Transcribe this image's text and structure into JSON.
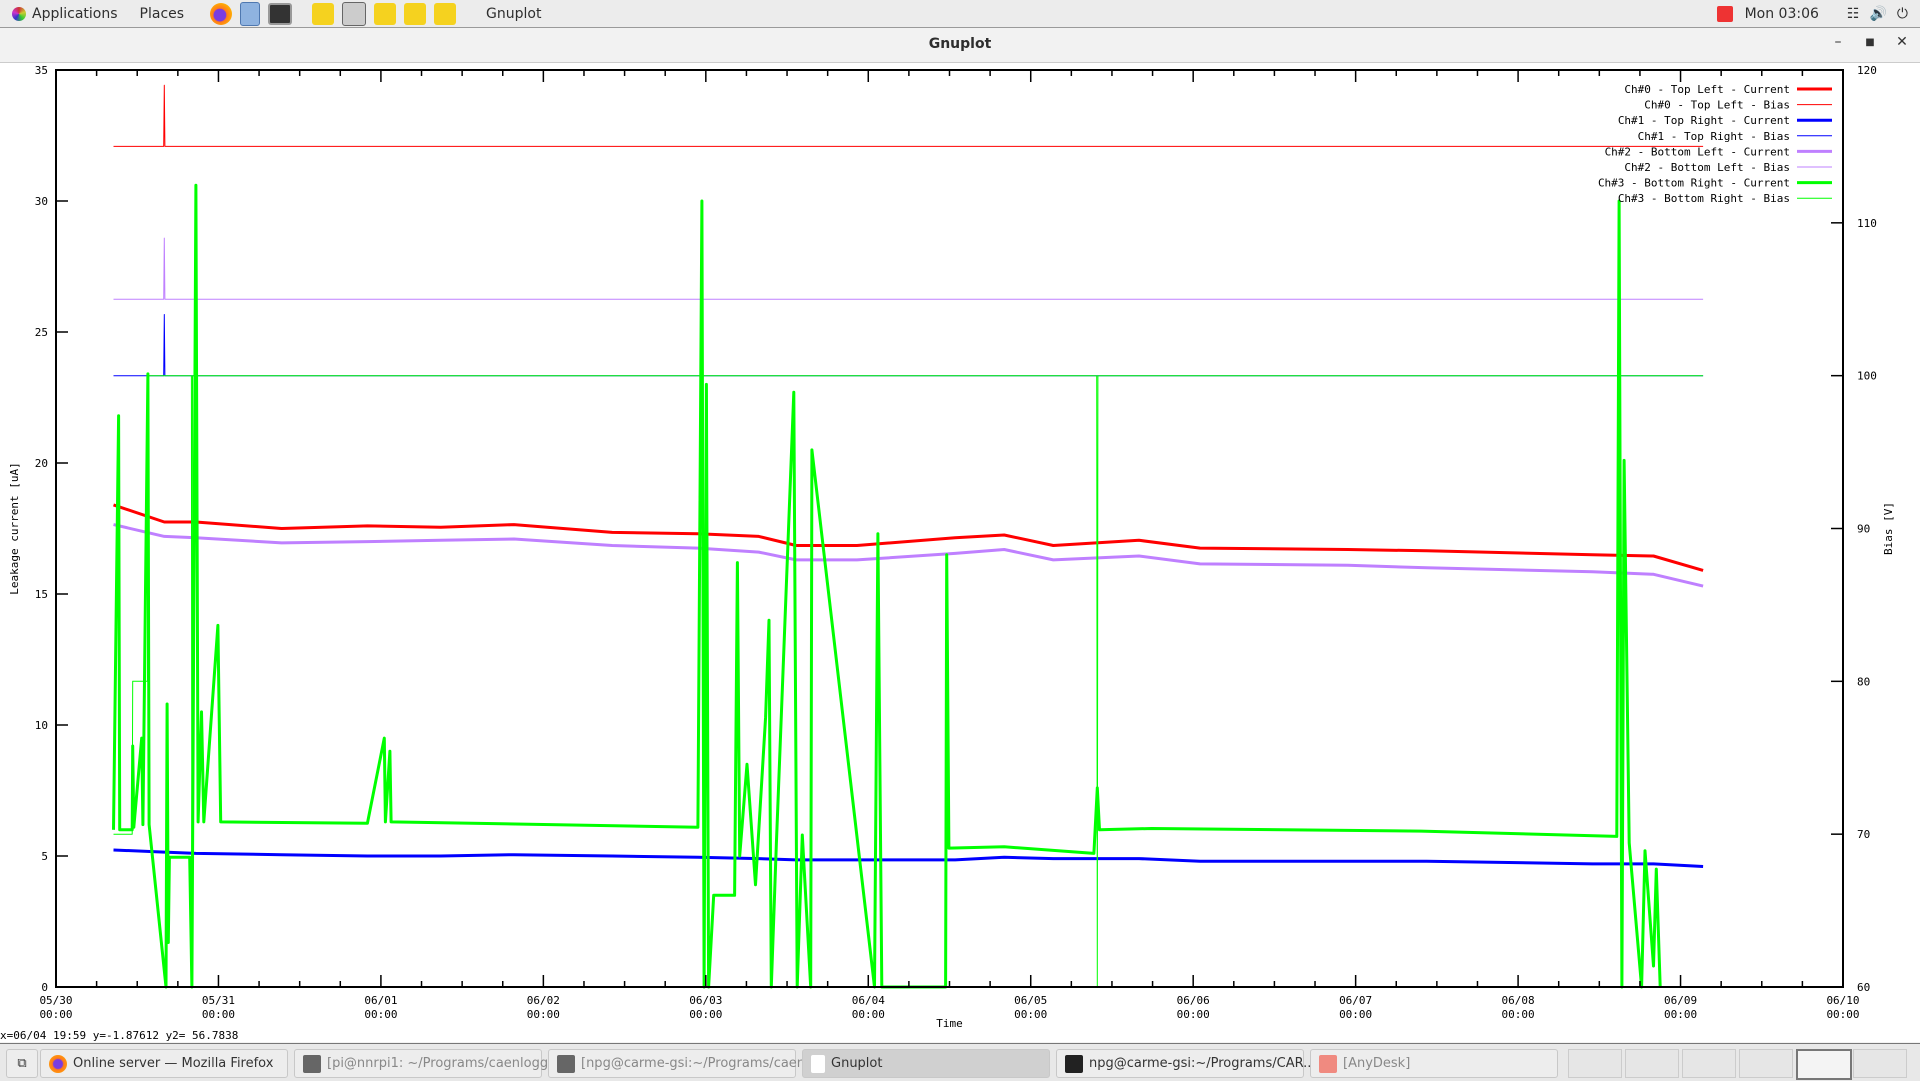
{
  "topbar": {
    "applications": "Applications",
    "places": "Places",
    "app_name": "Gnuplot",
    "clock": "Mon 03:06",
    "launchers": [
      "firefox-icon",
      "file-cabinet-icon",
      "terminal-icon",
      "midas-icon",
      "screenshot-icon",
      "midas-icon",
      "midas-icon",
      "midas-icon"
    ]
  },
  "window": {
    "title": "Gnuplot"
  },
  "status": "x=06/04 19:59 y=-1.87612 y2= 56.7838",
  "taskbar": {
    "tasks": [
      {
        "label": "Online server — Mozilla Firefox",
        "icon": "firefox-icon"
      },
      {
        "label": "[pi@nnrpi1: ~/Programs/caenlogg...",
        "icon": "terminal-icon"
      },
      {
        "label": "[npg@carme-gsi:~/Programs/caenl...",
        "icon": "terminal-icon"
      },
      {
        "label": "Gnuplot",
        "icon": "gnuplot-icon"
      },
      {
        "label": "npg@carme-gsi:~/Programs/CAR...",
        "icon": "terminal-icon"
      },
      {
        "label": "[AnyDesk]",
        "icon": "anydesk-icon"
      }
    ]
  },
  "chart_data": {
    "type": "line",
    "xlabel": "Time",
    "ylabel": "Leakage current [uA]",
    "y2label": "Bias [V]",
    "xlim": [
      "05/30 00:00",
      "06/10 00:00"
    ],
    "ylim": [
      0,
      35
    ],
    "y2lim": [
      60,
      120
    ],
    "xticks": [
      "05/30",
      "05/31",
      "06/01",
      "06/02",
      "06/03",
      "06/04",
      "06/05",
      "06/06",
      "06/07",
      "06/08",
      "06/09",
      "06/10"
    ],
    "xtick_time": "00:00",
    "yticks": [
      0,
      5,
      10,
      15,
      20,
      25,
      30,
      35
    ],
    "y2ticks": [
      60,
      70,
      80,
      90,
      100,
      110,
      120
    ],
    "grid": false,
    "legend_position": "top-right",
    "current_time": [
      "05/30 08:30",
      "05/30 16:00",
      "05/30 20:40",
      "05/31 09:20",
      "05/31 22:00",
      "06/01 08:50",
      "06/01 19:40",
      "06/02 10:10",
      "06/02 22:50",
      "06/03 07:50",
      "06/03 13:20",
      "06/03 22:20",
      "06/04 12:50",
      "06/04 20:05",
      "06/05 03:20",
      "06/05 16:00",
      "06/06 01:00",
      "06/06 22:50",
      "06/07 10:30",
      "06/08 11:00",
      "06/08 20:00",
      "06/09 03:20"
    ],
    "series": [
      {
        "name": "Ch#0 - Top Left - Current",
        "axis": "y1",
        "color": "#ff0000",
        "width": 3,
        "values": [
          18.4,
          17.75,
          17.75,
          17.5,
          17.6,
          17.55,
          17.65,
          17.35,
          17.3,
          17.2,
          16.85,
          16.85,
          17.15,
          17.25,
          16.85,
          17.05,
          16.75,
          16.7,
          16.65,
          16.5,
          16.45,
          15.9
        ]
      },
      {
        "name": "Ch#0 - Top Left - Bias",
        "axis": "y2",
        "color": "#ff0000",
        "width": 1,
        "points": [
          [
            "05/30 08:30",
            115
          ],
          [
            "05/30 15:55",
            115
          ],
          [
            "05/30 16:00",
            119
          ],
          [
            "05/30 16:05",
            115
          ],
          [
            "06/09 03:20",
            115
          ]
        ]
      },
      {
        "name": "Ch#1 - Top Right - Current",
        "axis": "y1",
        "color": "#0000ff",
        "width": 3,
        "values": [
          5.23,
          5.15,
          5.1,
          5.05,
          5.0,
          5.0,
          5.05,
          5.0,
          4.95,
          4.9,
          4.85,
          4.85,
          4.85,
          4.95,
          4.9,
          4.9,
          4.8,
          4.8,
          4.8,
          4.7,
          4.7,
          4.6
        ]
      },
      {
        "name": "Ch#1 - Top Right - Bias",
        "axis": "y2",
        "color": "#0000ff",
        "width": 1,
        "points": [
          [
            "05/30 08:30",
            100
          ],
          [
            "05/30 15:55",
            100
          ],
          [
            "05/30 16:00",
            104
          ],
          [
            "05/30 16:05",
            100
          ],
          [
            "06/09 03:20",
            100
          ]
        ]
      },
      {
        "name": "Ch#2 - Bottom Left - Current",
        "axis": "y1",
        "color": "#bf80ff",
        "width": 3,
        "values": [
          17.65,
          17.2,
          17.15,
          16.95,
          17.0,
          17.05,
          17.1,
          16.85,
          16.75,
          16.6,
          16.3,
          16.3,
          16.55,
          16.7,
          16.3,
          16.45,
          16.15,
          16.1,
          16.0,
          15.85,
          15.75,
          15.3
        ]
      },
      {
        "name": "Ch#2 - Bottom Left - Bias",
        "axis": "y2",
        "color": "#bf80ff",
        "width": 1,
        "points": [
          [
            "05/30 08:30",
            105
          ],
          [
            "05/30 15:55",
            105
          ],
          [
            "05/30 16:00",
            109
          ],
          [
            "05/30 16:05",
            105
          ],
          [
            "06/09 03:20",
            105
          ]
        ]
      },
      {
        "name": "Ch#3 - Bottom Right - Current",
        "axis": "y1",
        "color": "#00ff00",
        "width": 3,
        "points": [
          [
            "05/30 08:30",
            6.0
          ],
          [
            "05/30 09:15",
            21.8
          ],
          [
            "05/30 09:25",
            6.0
          ],
          [
            "05/30 11:15",
            6.0
          ],
          [
            "05/30 11:20",
            9.2
          ],
          [
            "05/30 11:30",
            6.1
          ],
          [
            "05/30 12:40",
            9.5
          ],
          [
            "05/30 12:50",
            6.2
          ],
          [
            "05/30 13:35",
            23.4
          ],
          [
            "05/30 13:45",
            6.2
          ],
          [
            "05/30 16:15",
            0
          ],
          [
            "05/30 16:25",
            10.8
          ],
          [
            "05/30 16:35",
            1.7
          ],
          [
            "05/30 16:45",
            4.95
          ],
          [
            "05/30 19:45",
            4.95
          ],
          [
            "05/30 20:05",
            0
          ],
          [
            "05/30 20:40",
            30.6
          ],
          [
            "05/30 21:00",
            6.3
          ],
          [
            "05/30 21:30",
            10.5
          ],
          [
            "05/30 21:50",
            6.3
          ],
          [
            "05/30 23:55",
            13.8
          ],
          [
            "05/31 00:20",
            6.3
          ],
          [
            "05/31 22:00",
            6.25
          ],
          [
            "06/01 00:30",
            9.5
          ],
          [
            "06/01 00:40",
            6.3
          ],
          [
            "06/01 01:20",
            9.0
          ],
          [
            "06/01 01:30",
            6.3
          ],
          [
            "06/02 22:50",
            6.1
          ],
          [
            "06/02 23:25",
            30
          ],
          [
            "06/02 23:45",
            0
          ],
          [
            "06/03 00:05",
            23
          ],
          [
            "06/03 00:25",
            0
          ],
          [
            "06/03 01:10",
            3.5
          ],
          [
            "06/03 04:15",
            3.5
          ],
          [
            "06/03 04:40",
            16.2
          ],
          [
            "06/03 05:00",
            5
          ],
          [
            "06/03 06:05",
            8.5
          ],
          [
            "06/03 07:20",
            3.9
          ],
          [
            "06/03 08:50",
            10.3
          ],
          [
            "06/03 09:20",
            14
          ],
          [
            "06/03 09:40",
            0
          ],
          [
            "06/03 10:25",
            5.4
          ],
          [
            "06/03 13:00",
            22.7
          ],
          [
            "06/03 13:30",
            0
          ],
          [
            "06/03 14:15",
            5.8
          ],
          [
            "06/03 15:30",
            0
          ],
          [
            "06/03 15:40",
            20.5
          ],
          [
            "06/04 00:55",
            0
          ],
          [
            "06/04 01:25",
            17.3
          ],
          [
            "06/04 02:00",
            0
          ],
          [
            "06/04 11:25",
            0
          ],
          [
            "06/04 11:35",
            16.5
          ],
          [
            "06/04 11:55",
            5.3
          ],
          [
            "06/04 20:05",
            5.35
          ],
          [
            "06/05 09:20",
            5.1
          ],
          [
            "06/05 09:50",
            7.6
          ],
          [
            "06/05 10:10",
            6.0
          ],
          [
            "06/05 17:50",
            6.05
          ],
          [
            "06/07 09:40",
            5.95
          ],
          [
            "06/08 14:35",
            5.75
          ],
          [
            "06/08 14:55",
            30
          ],
          [
            "06/08 15:20",
            0
          ],
          [
            "06/08 15:40",
            20.1
          ],
          [
            "06/08 16:25",
            5.5
          ],
          [
            "06/08 18:15",
            0
          ],
          [
            "06/08 18:45",
            5.2
          ],
          [
            "06/08 20:00",
            0.8
          ],
          [
            "06/08 20:25",
            4.5
          ],
          [
            "06/08 21:00",
            0
          ]
        ]
      },
      {
        "name": "Ch#3 - Bottom Right - Bias",
        "axis": "y2",
        "color": "#00ff00",
        "width": 1,
        "points": [
          [
            "05/30 08:30",
            70
          ],
          [
            "05/30 11:15",
            70
          ],
          [
            "05/30 11:20",
            80
          ],
          [
            "05/30 13:30",
            80
          ],
          [
            "05/30 13:35",
            100
          ],
          [
            "05/30 20:00",
            100
          ],
          [
            "05/30 20:05",
            60
          ],
          [
            "05/30 20:10",
            100
          ],
          [
            "06/05 09:45",
            100
          ],
          [
            "06/05 09:50",
            60
          ],
          [
            "06/05 09:55",
            100
          ],
          [
            "06/09 03:20",
            100
          ]
        ]
      }
    ]
  }
}
